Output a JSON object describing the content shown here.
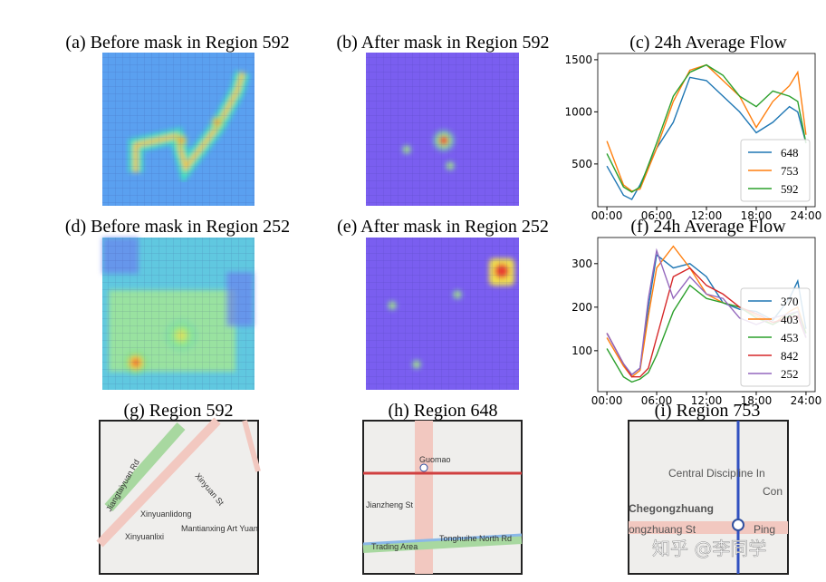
{
  "panels": {
    "a": "(a) Before mask in Region 592",
    "b": "(b) After mask in Region 592",
    "d": "(d) Before mask in Region 252",
    "e": "(e) After mask in Region 252",
    "g": "(g) Region 592",
    "h": "(h) Region 648",
    "i": "(i) Region 753"
  },
  "maps": {
    "g": [
      "Xinyuanlidong",
      "Xinyuanlixi",
      "Mantianxing Art Yuan",
      "Jiangtaiyuan Rd",
      "Xinyuan St"
    ],
    "h": [
      "Guomao",
      "Tonghuihe North Rd",
      "Jianzheng St",
      "Trading Area"
    ],
    "i": [
      "Central Discipline In",
      "Con",
      "Chegongzhuang",
      "ongzhuang St",
      "Ping"
    ]
  },
  "watermark": "知乎 @李同学",
  "chart_data": [
    {
      "type": "line",
      "title": "(c) 24h Average Flow",
      "x": [
        0,
        2,
        3,
        4,
        6,
        8,
        10,
        12,
        14,
        16,
        18,
        20,
        22,
        23,
        24
      ],
      "xlim": [
        -1.1,
        25.1
      ],
      "xticks": [
        {
          "value": 0,
          "label": "00:00"
        },
        {
          "value": 6,
          "label": "06:00"
        },
        {
          "value": 12,
          "label": "12:00"
        },
        {
          "value": 18,
          "label": "18:00"
        },
        {
          "value": 24,
          "label": "24:00"
        }
      ],
      "ylim": [
        90,
        1560
      ],
      "yticks": [
        500,
        1000,
        1500
      ],
      "legend": "lower right",
      "series": [
        {
          "name": "648",
          "color": "#1f77b4",
          "values": [
            480,
            200,
            160,
            300,
            650,
            900,
            1330,
            1300,
            1150,
            1000,
            800,
            900,
            1050,
            1000,
            700
          ]
        },
        {
          "name": "753",
          "color": "#ff7f0e",
          "values": [
            720,
            300,
            240,
            260,
            650,
            1100,
            1400,
            1450,
            1300,
            1150,
            850,
            1100,
            1250,
            1380,
            780
          ]
        },
        {
          "name": "592",
          "color": "#2ca02c",
          "values": [
            600,
            280,
            230,
            280,
            700,
            1150,
            1380,
            1450,
            1350,
            1150,
            1050,
            1200,
            1150,
            1100,
            700
          ]
        }
      ]
    },
    {
      "type": "line",
      "title": "(f) 24h Average Flow",
      "x": [
        0,
        2,
        3,
        4,
        5,
        6,
        8,
        10,
        12,
        14,
        16,
        18,
        20,
        22,
        23,
        24
      ],
      "xlim": [
        -1.1,
        25.1
      ],
      "xticks": [
        {
          "value": 0,
          "label": "00:00"
        },
        {
          "value": 6,
          "label": "06:00"
        },
        {
          "value": 12,
          "label": "12:00"
        },
        {
          "value": 18,
          "label": "18:00"
        },
        {
          "value": 24,
          "label": "24:00"
        }
      ],
      "ylim": [
        6,
        360
      ],
      "yticks": [
        100,
        200,
        300
      ],
      "legend": "lower right",
      "series": [
        {
          "name": "370",
          "color": "#1f77b4",
          "values": [
            140,
            70,
            45,
            60,
            200,
            320,
            290,
            300,
            270,
            210,
            195,
            190,
            170,
            220,
            260,
            150
          ]
        },
        {
          "name": "403",
          "color": "#ff7f0e",
          "values": [
            130,
            65,
            40,
            55,
            180,
            290,
            340,
            290,
            230,
            210,
            200,
            180,
            160,
            190,
            200,
            140
          ]
        },
        {
          "name": "453",
          "color": "#2ca02c",
          "values": [
            105,
            40,
            28,
            35,
            50,
            90,
            190,
            250,
            220,
            210,
            200,
            175,
            160,
            180,
            190,
            140
          ]
        },
        {
          "name": "842",
          "color": "#d62728",
          "values": [
            140,
            70,
            40,
            40,
            60,
            130,
            270,
            290,
            250,
            230,
            200,
            185,
            165,
            175,
            180,
            130
          ]
        },
        {
          "name": "252",
          "color": "#9467bd",
          "values": [
            140,
            70,
            45,
            60,
            220,
            330,
            220,
            270,
            230,
            220,
            175,
            160,
            175,
            185,
            190,
            130
          ]
        }
      ]
    }
  ]
}
